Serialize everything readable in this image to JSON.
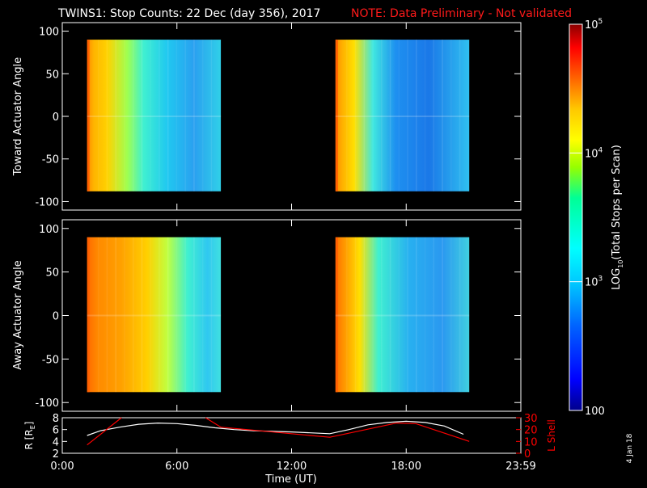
{
  "header": {
    "title": "TWINS1: Stop Counts: 22 Dec (day 356), 2017",
    "note": "NOTE: Data Preliminary - Not validated"
  },
  "footer": {
    "date_stamp": "4 Jan 18"
  },
  "colors": {
    "background": "#000000",
    "foreground": "#ffffff",
    "note": "#ff1a1a",
    "lshell": "#ff0000"
  },
  "chart_data": [
    {
      "type": "heatmap",
      "panel": "toward",
      "ylabel": "Toward Actuator Angle",
      "ylim": [
        -110,
        110
      ],
      "y_ticks": [
        100,
        50,
        0,
        -50,
        -100
      ],
      "xlim": [
        0,
        24
      ],
      "angle_range": [
        -88,
        90
      ],
      "data_windows": [
        {
          "start_hour": 1.3,
          "end_hour": 8.3
        },
        {
          "start_hour": 14.3,
          "end_hour": 21.3
        }
      ],
      "color_scale": "log",
      "notes": "High counts (~1e5, orange/red) at start of each window, decreasing to ~1e3 (blue) toward end"
    },
    {
      "type": "heatmap",
      "panel": "away",
      "ylabel": "Away Actuator Angle",
      "ylim": [
        -110,
        110
      ],
      "y_ticks": [
        100,
        50,
        0,
        -50,
        -100
      ],
      "xlim": [
        0,
        24
      ],
      "angle_range": [
        -88,
        90
      ],
      "data_windows": [
        {
          "start_hour": 1.3,
          "end_hour": 8.3
        },
        {
          "start_hour": 14.3,
          "end_hour": 21.3
        }
      ],
      "color_scale": "log"
    },
    {
      "type": "line",
      "panel": "ephemeris",
      "ylabel": "R [RE]",
      "ylabel_right": "L Shell",
      "xlabel": "Time (UT)",
      "xlim": [
        0,
        24
      ],
      "ylim": [
        2,
        8
      ],
      "y_ticks": [
        8,
        6,
        4,
        2
      ],
      "ylim_right": [
        0,
        30
      ],
      "y_ticks_right": [
        30,
        20,
        10,
        0
      ],
      "x_ticks": [
        {
          "value": 0,
          "label": "0:00"
        },
        {
          "value": 6,
          "label": "6:00"
        },
        {
          "value": 12,
          "label": "12:00"
        },
        {
          "value": 18,
          "label": "18:00"
        },
        {
          "value": 24,
          "label": "23:59"
        }
      ],
      "series": [
        {
          "axis": "left",
          "x": [
            1.3,
            2.0,
            3.0,
            4.0,
            5.0,
            6.0,
            7.0,
            8.0,
            9.0,
            10.0,
            12.0,
            14.0,
            15.0,
            16.0,
            17.0,
            18.0,
            19.0,
            20.0,
            21.0
          ],
          "y": [
            5.0,
            5.8,
            6.4,
            6.9,
            7.1,
            7.0,
            6.7,
            6.3,
            6.0,
            5.8,
            5.6,
            5.3,
            6.0,
            6.8,
            7.2,
            7.4,
            7.2,
            6.6,
            5.2
          ]
        },
        {
          "axis": "right",
          "x": [
            1.3,
            3.1,
            3.1,
            7.5,
            8.3,
            14.0,
            17.5,
            18.5,
            21.3
          ],
          "y": [
            7.0,
            30.0,
            null,
            30.0,
            22.0,
            13.5,
            25.5,
            25.0,
            10.0
          ]
        }
      ]
    }
  ],
  "colorbar": {
    "label": "LOG10(Total Stops per Scan)",
    "label_main": "LOG",
    "label_sub": "10",
    "label_rest": "(Total Stops per Scan)",
    "scale": "log",
    "range": [
      100,
      100000
    ],
    "ticks": [
      {
        "value": 100000,
        "label": "10",
        "exp": "5"
      },
      {
        "value": 10000,
        "label": "10",
        "exp": "4"
      },
      {
        "value": 1000,
        "label": "10",
        "exp": "3"
      },
      {
        "value": 100,
        "label": "100",
        "exp": ""
      }
    ],
    "colors": [
      "#00008b",
      "#0000ff",
      "#0064ff",
      "#00c8ff",
      "#00ffff",
      "#00ff96",
      "#96ff00",
      "#ffff00",
      "#ffc800",
      "#ff6400",
      "#ff0000",
      "#8b0000"
    ]
  }
}
